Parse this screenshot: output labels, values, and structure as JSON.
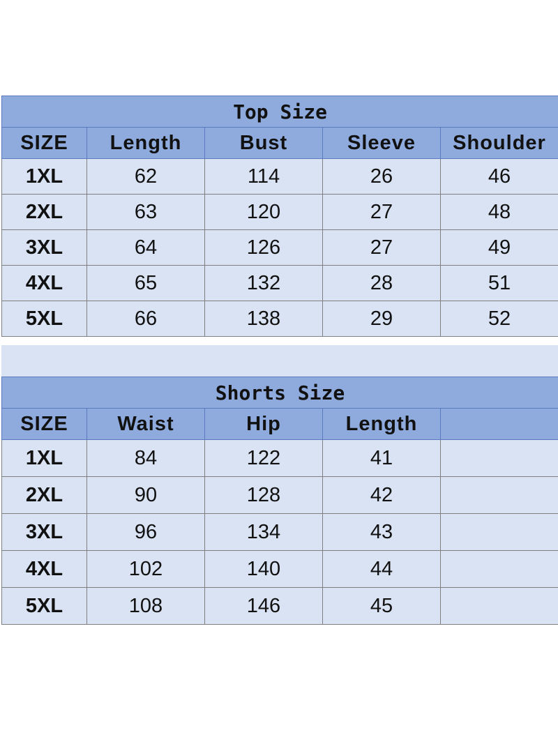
{
  "colors": {
    "header": "#8faadc",
    "body": "#dae3f3",
    "border": "#7f7f7f"
  },
  "top": {
    "title": "Top Size",
    "headers": [
      "SIZE",
      "Length",
      "Bust",
      "Sleeve",
      "Shoulder"
    ],
    "rows": [
      [
        "1XL",
        "62",
        "114",
        "26",
        "46"
      ],
      [
        "2XL",
        "63",
        "120",
        "27",
        "48"
      ],
      [
        "3XL",
        "64",
        "126",
        "27",
        "49"
      ],
      [
        "4XL",
        "65",
        "132",
        "28",
        "51"
      ],
      [
        "5XL",
        "66",
        "138",
        "29",
        "52"
      ]
    ]
  },
  "shorts": {
    "title": "Shorts Size",
    "headers": [
      "SIZE",
      "Waist",
      "Hip",
      "Length",
      ""
    ],
    "rows": [
      [
        "1XL",
        "84",
        "122",
        "41",
        ""
      ],
      [
        "2XL",
        "90",
        "128",
        "42",
        ""
      ],
      [
        "3XL",
        "96",
        "134",
        "43",
        ""
      ],
      [
        "4XL",
        "102",
        "140",
        "44",
        ""
      ],
      [
        "5XL",
        "108",
        "146",
        "45",
        ""
      ]
    ]
  }
}
